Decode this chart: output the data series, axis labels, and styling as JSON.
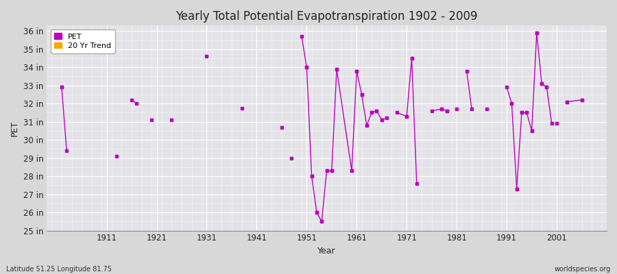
{
  "title": "Yearly Total Potential Evapotranspiration 1902 - 2009",
  "xlabel": "Year",
  "ylabel": "PET",
  "bottom_left": "Latitude 51.25 Longitude 81.75",
  "bottom_right": "worldspecies.org",
  "ylim": [
    25,
    36.3
  ],
  "ytick_labels": [
    "25 in",
    "26 in",
    "27 in",
    "28 in",
    "29 in",
    "30 in",
    "31 in",
    "32 in",
    "33 in",
    "34 in",
    "35 in",
    "36 in"
  ],
  "ytick_values": [
    25,
    26,
    27,
    28,
    29,
    30,
    31,
    32,
    33,
    34,
    35,
    36
  ],
  "xlim": [
    1899,
    2011
  ],
  "xtick_values": [
    1911,
    1921,
    1931,
    1941,
    1951,
    1961,
    1971,
    1981,
    1991,
    2001
  ],
  "fig_bg_color": "#d8d8d8",
  "plot_bg_color": "#e4e4e8",
  "line_color": "#bb00bb",
  "trend_color": "#ffa500",
  "legend_marker_color": "#bb00bb",
  "segments": [
    [
      [
        1902,
        1903
      ],
      [
        32.9,
        29.4
      ]
    ],
    [
      [
        1916,
        1917
      ],
      [
        32.2,
        32.0
      ]
    ],
    [
      [
        1950,
        1951
      ],
      [
        35.7,
        34.0
      ]
    ],
    [
      [
        1951,
        1952
      ],
      [
        34.0,
        28.0
      ]
    ],
    [
      [
        1952,
        1953
      ],
      [
        28.0,
        26.0
      ]
    ],
    [
      [
        1953,
        1954
      ],
      [
        26.0,
        25.5
      ]
    ],
    [
      [
        1954,
        1955
      ],
      [
        25.5,
        28.3
      ]
    ],
    [
      [
        1955,
        1956
      ],
      [
        28.3,
        28.3
      ]
    ],
    [
      [
        1956,
        1957
      ],
      [
        28.3,
        33.9
      ]
    ],
    [
      [
        1957,
        1960
      ],
      [
        33.9,
        28.3
      ]
    ],
    [
      [
        1960,
        1961
      ],
      [
        28.3,
        33.8
      ]
    ],
    [
      [
        1961,
        1962
      ],
      [
        33.8,
        32.5
      ]
    ],
    [
      [
        1962,
        1963
      ],
      [
        32.5,
        30.8
      ]
    ],
    [
      [
        1963,
        1964
      ],
      [
        30.8,
        31.5
      ]
    ],
    [
      [
        1964,
        1965
      ],
      [
        31.5,
        31.6
      ]
    ],
    [
      [
        1965,
        1966
      ],
      [
        31.6,
        31.1
      ]
    ],
    [
      [
        1966,
        1967
      ],
      [
        31.1,
        31.2
      ]
    ],
    [
      [
        1969,
        1971
      ],
      [
        31.5,
        31.3
      ]
    ],
    [
      [
        1971,
        1972
      ],
      [
        31.3,
        34.5
      ]
    ],
    [
      [
        1972,
        1973
      ],
      [
        34.5,
        27.6
      ]
    ],
    [
      [
        1976,
        1978
      ],
      [
        31.6,
        31.7
      ]
    ],
    [
      [
        1978,
        1979
      ],
      [
        31.7,
        31.6
      ]
    ],
    [
      [
        1983,
        1984
      ],
      [
        33.8,
        31.7
      ]
    ],
    [
      [
        1991,
        1992
      ],
      [
        32.9,
        32.0
      ]
    ],
    [
      [
        1992,
        1993
      ],
      [
        32.0,
        27.3
      ]
    ],
    [
      [
        1993,
        1994
      ],
      [
        27.3,
        31.5
      ]
    ],
    [
      [
        1994,
        1995
      ],
      [
        31.5,
        31.5
      ]
    ],
    [
      [
        1995,
        1996
      ],
      [
        31.5,
        30.5
      ]
    ],
    [
      [
        1996,
        1997
      ],
      [
        30.5,
        35.9
      ]
    ],
    [
      [
        1997,
        1998
      ],
      [
        35.9,
        33.1
      ]
    ],
    [
      [
        1998,
        1999
      ],
      [
        33.1,
        32.9
      ]
    ],
    [
      [
        1999,
        2000
      ],
      [
        32.9,
        30.9
      ]
    ],
    [
      [
        2003,
        2006
      ],
      [
        32.1,
        32.2
      ]
    ]
  ],
  "isolated_points": [
    [
      1902,
      32.9
    ],
    [
      1913,
      29.1
    ],
    [
      1920,
      31.1
    ],
    [
      1924,
      31.1
    ],
    [
      1931,
      34.6
    ],
    [
      1938,
      31.75
    ],
    [
      1946,
      30.7
    ],
    [
      1948,
      29.0
    ],
    [
      1979,
      31.6
    ],
    [
      1981,
      31.7
    ],
    [
      1987,
      31.7
    ],
    [
      2001,
      30.9
    ],
    [
      2003,
      32.1
    ],
    [
      2006,
      32.2
    ]
  ]
}
